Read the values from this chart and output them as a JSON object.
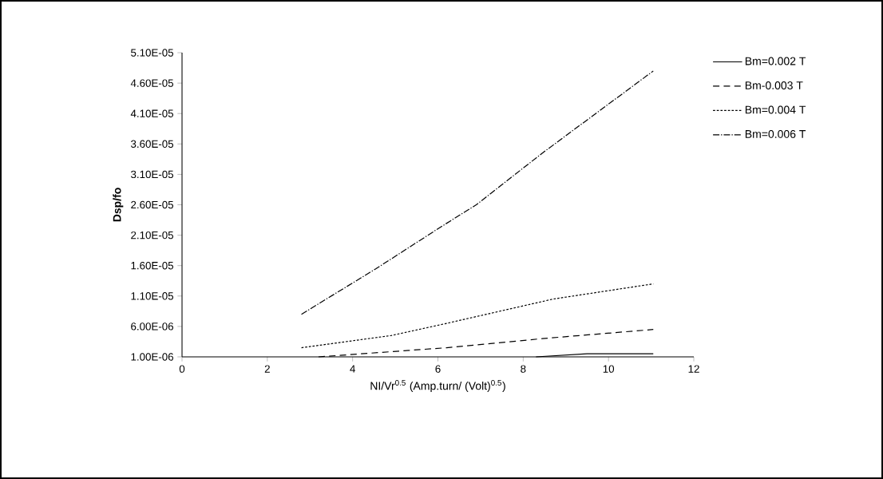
{
  "chart_data": {
    "type": "line",
    "xlabel": "NI/Vr$^{0.5}$   (Amp.turn/ (Volt)$^{0.5}$)",
    "ylabel": "Dsp/fo",
    "xlim": [
      0,
      12
    ],
    "xticks": [
      0,
      2,
      4,
      6,
      8,
      10,
      12
    ],
    "ylim": [
      1e-06,
      5.1e-05
    ],
    "yticks": [
      {
        "value": 1e-06,
        "label": "1.00E-06"
      },
      {
        "value": 6e-06,
        "label": "6.00E-06"
      },
      {
        "value": 1.1e-05,
        "label": "1.10E-05"
      },
      {
        "value": 1.6e-05,
        "label": "1.60E-05"
      },
      {
        "value": 2.1e-05,
        "label": "2.10E-05"
      },
      {
        "value": 2.6e-05,
        "label": "2.60E-05"
      },
      {
        "value": 3.1e-05,
        "label": "3.10E-05"
      },
      {
        "value": 3.6e-05,
        "label": "3.60E-05"
      },
      {
        "value": 4.1e-05,
        "label": "4.10E-05"
      },
      {
        "value": 4.6e-05,
        "label": "4.60E-05"
      },
      {
        "value": 5.1e-05,
        "label": "5.10E-05"
      }
    ],
    "legend": "right",
    "grid": false,
    "marker": "none",
    "series": [
      {
        "name": "Bm=0.002 T",
        "color": "#000000",
        "line_style": "solid",
        "x": [
          8.3,
          9.5,
          11.05
        ],
        "values": [
          1e-06,
          1.5e-06,
          1.5e-06
        ]
      },
      {
        "name": "Bm-0.003 T",
        "color": "#000000",
        "line_style": "dashed",
        "x": [
          3.2,
          6.2,
          8.45,
          11.05
        ],
        "values": [
          1e-06,
          2.5e-06,
          4e-06,
          5.5e-06
        ]
      },
      {
        "name": "Bm=0.004 T",
        "color": "#000000",
        "line_style": "dotted",
        "x": [
          2.8,
          4.9,
          6.2,
          8.7,
          11.05
        ],
        "values": [
          2.5e-06,
          4.5e-06,
          6.5e-06,
          1.05e-05,
          1.3e-05
        ]
      },
      {
        "name": "Bm=0.006 T",
        "color": "#000000",
        "line_style": "dashdot",
        "x": [
          2.8,
          4.55,
          6.1,
          6.9,
          8.45,
          11.05
        ],
        "values": [
          8e-06,
          1.55e-05,
          2.25e-05,
          2.6e-05,
          3.45e-05,
          4.8e-05
        ]
      }
    ]
  }
}
